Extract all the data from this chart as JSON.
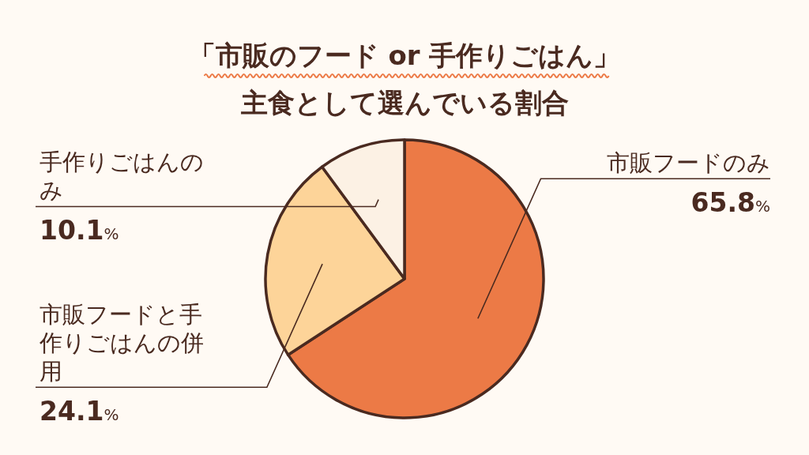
{
  "chart_data": {
    "type": "pie",
    "title": "「市販のフード or 手作りごはん」",
    "subtitle": "主食として選んでいる割合",
    "categories": [
      "市販フードのみ",
      "市販フードと手作りごはんの併用",
      "手作りごはんのみ"
    ],
    "values": [
      65.8,
      24.1,
      10.1
    ],
    "colors": [
      "#ec7a46",
      "#fdd499",
      "#fcf1e4"
    ],
    "value_labels": [
      "65.8%",
      "24.1%",
      "10.1%"
    ]
  }
}
